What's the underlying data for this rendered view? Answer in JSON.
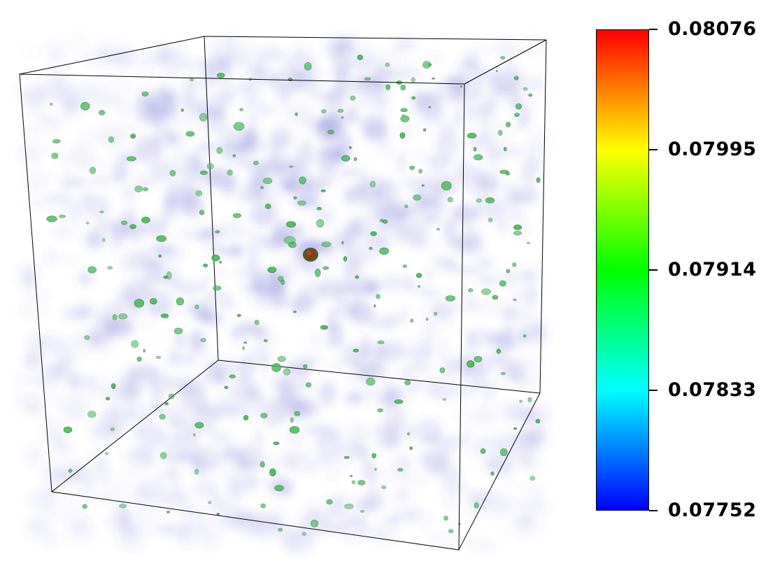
{
  "colorbar": {
    "ticks": [
      "0.08076",
      "0.07995",
      "0.07914",
      "0.07833",
      "0.07752"
    ],
    "min": 0.07752,
    "max": 0.08076,
    "colors": [
      "#0000ff",
      "#0080ff",
      "#00ffff",
      "#00ff80",
      "#00ff00",
      "#80ff00",
      "#ffff00",
      "#ff8000",
      "#ff0000"
    ]
  },
  "volume": {
    "haze_color": "#5555cc",
    "isosurface_color": "#44bb55",
    "core_color": "#8a3a1a",
    "box_edge_color": "#000000"
  }
}
